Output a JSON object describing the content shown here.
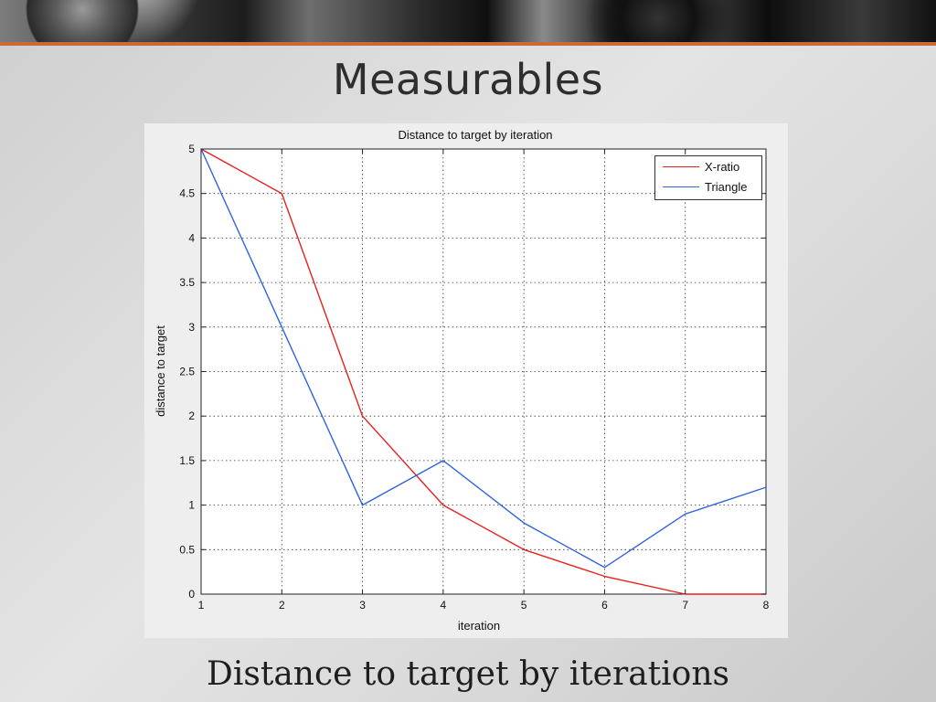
{
  "slide": {
    "title": "Measurables",
    "caption": "Distance to target by iterations"
  },
  "colors": {
    "accent_rule": "#c76b37",
    "xratio": "#e8201c",
    "triangle": "#2f63e0"
  },
  "chart_data": {
    "type": "line",
    "title": "Distance to target by iteration",
    "xlabel": "iteration",
    "ylabel": "distance to target",
    "xlim": [
      1,
      8
    ],
    "ylim": [
      0,
      5
    ],
    "xticks": [
      1,
      2,
      3,
      4,
      5,
      6,
      7,
      8
    ],
    "yticks": [
      0,
      0.5,
      1,
      1.5,
      2,
      2.5,
      3,
      3.5,
      4,
      4.5,
      5
    ],
    "ytick_labels": [
      "0",
      "0.5",
      "1",
      "1.5",
      "2",
      "2.5",
      "3",
      "3.5",
      "4",
      "4.5",
      "5"
    ],
    "grid": true,
    "legend_position": "top-right",
    "series": [
      {
        "name": "X-ratio",
        "color": "#e8201c",
        "x": [
          1,
          2,
          3,
          4,
          5,
          6,
          7,
          8
        ],
        "y": [
          5,
          4.5,
          2,
          1,
          0.5,
          0.2,
          0,
          0
        ]
      },
      {
        "name": "Triangle",
        "color": "#2f63e0",
        "x": [
          1,
          2,
          3,
          4,
          5,
          6,
          7,
          8
        ],
        "y": [
          5,
          3,
          1,
          1.5,
          0.8,
          0.3,
          0.9,
          1.2
        ]
      }
    ]
  }
}
